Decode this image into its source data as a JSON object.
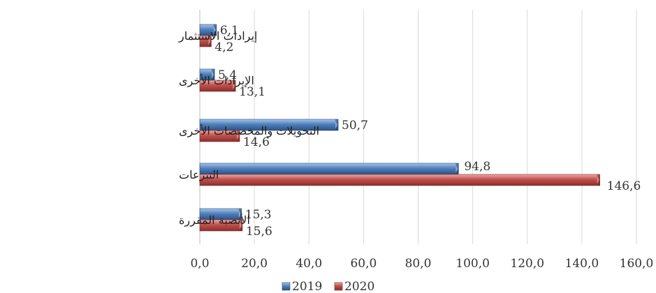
{
  "chart_data": {
    "type": "bar",
    "orientation": "horizontal",
    "categories": [
      "إيرادات الاستثمار",
      "الإيرادات الأخرى",
      "التحويلات والمخصصات الأخرى",
      "التبرعات",
      "الأنصبة المقررة"
    ],
    "series": [
      {
        "name": "2019",
        "values": [
          6.1,
          5.4,
          50.7,
          94.8,
          15.3
        ],
        "labels": [
          "6,1",
          "5,4",
          "50,7",
          "94,8",
          "15,3"
        ],
        "color": "#4f81bd"
      },
      {
        "name": "2020",
        "values": [
          4.2,
          13.1,
          14.6,
          146.6,
          15.6
        ],
        "labels": [
          "4,2",
          "13,1",
          "14,6",
          "146,6",
          "15,6"
        ],
        "color": "#c0504d"
      }
    ],
    "xlim": [
      0,
      160
    ],
    "x_ticks": [
      "0,0",
      "20,0",
      "40,0",
      "60,0",
      "80,0",
      "100,0",
      "120,0",
      "140,0",
      "160,0"
    ],
    "grid": "vertical",
    "legend_position": "bottom"
  }
}
